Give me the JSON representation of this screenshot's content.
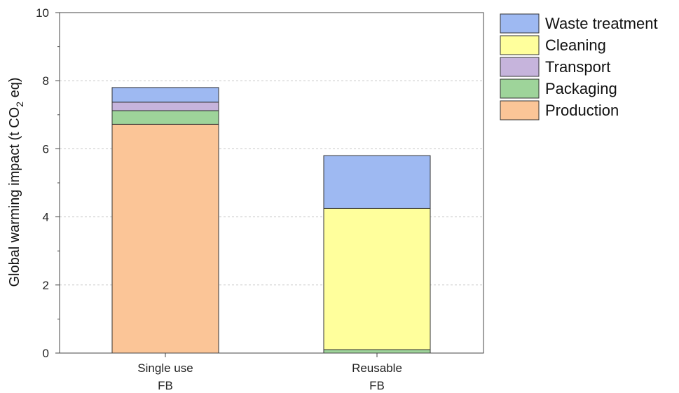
{
  "chart_data": {
    "type": "bar",
    "stacked": true,
    "categories": [
      [
        "Single use",
        "FB"
      ],
      [
        "Reusable",
        "FB"
      ]
    ],
    "ylabel": {
      "prefix": "Global warming impact (t CO",
      "subscript": "2",
      "suffix": " eq)"
    },
    "ylim": [
      0,
      10
    ],
    "yticks": [
      0,
      2,
      4,
      6,
      8,
      10
    ],
    "grid": "horizontal-dashed",
    "legend_position": "top-right",
    "series": [
      {
        "name": "Production",
        "color": "#fbc597",
        "values": [
          6.72,
          0.0
        ]
      },
      {
        "name": "Packaging",
        "color": "#9ed49a",
        "values": [
          0.4,
          0.1
        ]
      },
      {
        "name": "Transport",
        "color": "#c6b4dc",
        "values": [
          0.25,
          0.0
        ]
      },
      {
        "name": "Cleaning",
        "color": "#ffff9c",
        "values": [
          0.0,
          4.15
        ]
      },
      {
        "name": "Waste treatment",
        "color": "#9eb9f2",
        "values": [
          0.43,
          1.55
        ]
      }
    ],
    "legend_order": [
      "Waste treatment",
      "Cleaning",
      "Transport",
      "Packaging",
      "Production"
    ]
  }
}
